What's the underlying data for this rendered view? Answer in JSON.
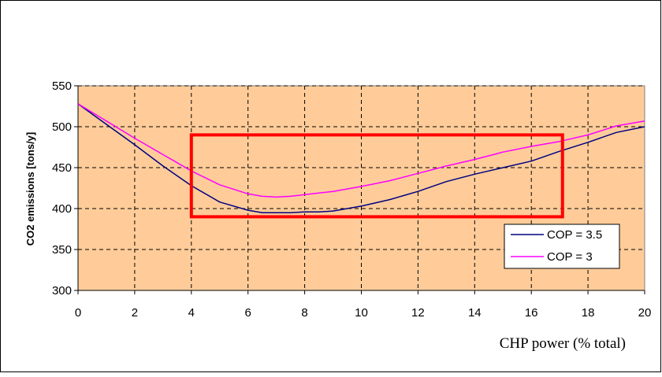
{
  "chart_data": {
    "type": "line",
    "title": "",
    "xlabel": "CHP power (% total)",
    "ylabel": "CO2  emissions [tons/y]",
    "xlim": [
      0,
      20
    ],
    "ylim": [
      300,
      550
    ],
    "xticks": [
      0,
      2,
      4,
      6,
      8,
      10,
      12,
      14,
      16,
      18,
      20
    ],
    "yticks": [
      300,
      350,
      400,
      450,
      500,
      550
    ],
    "grid": true,
    "legend_position": "bottom-right",
    "plot_background": "#FFCC99",
    "series": [
      {
        "name": "COP = 3.5",
        "color": "#000080",
        "x": [
          0,
          1,
          2,
          3,
          4,
          5,
          6,
          6.5,
          7,
          7.5,
          8,
          8.5,
          9,
          10,
          11,
          12,
          13,
          14,
          15,
          16,
          17,
          18,
          19,
          20
        ],
        "y": [
          528,
          503,
          478,
          452,
          428,
          408,
          398,
          395,
          395,
          395,
          396,
          396,
          397,
          403,
          411,
          421,
          433,
          442,
          450,
          458,
          470,
          481,
          493,
          500
        ]
      },
      {
        "name": "COP = 3",
        "color": "#FF00FF",
        "x": [
          0,
          1,
          2,
          3,
          4,
          5,
          6,
          6.5,
          7,
          7.5,
          8,
          9,
          10,
          11,
          12,
          13,
          14,
          15,
          16,
          17,
          18,
          19,
          20
        ],
        "y": [
          528,
          507,
          486,
          466,
          446,
          429,
          418,
          415,
          414,
          415,
          417,
          421,
          427,
          434,
          443,
          452,
          460,
          469,
          476,
          482,
          490,
          501,
          507
        ]
      }
    ],
    "highlight_box": {
      "color": "#FF0000",
      "x_range": [
        4,
        17.1
      ],
      "y_range": [
        390,
        490
      ]
    }
  }
}
